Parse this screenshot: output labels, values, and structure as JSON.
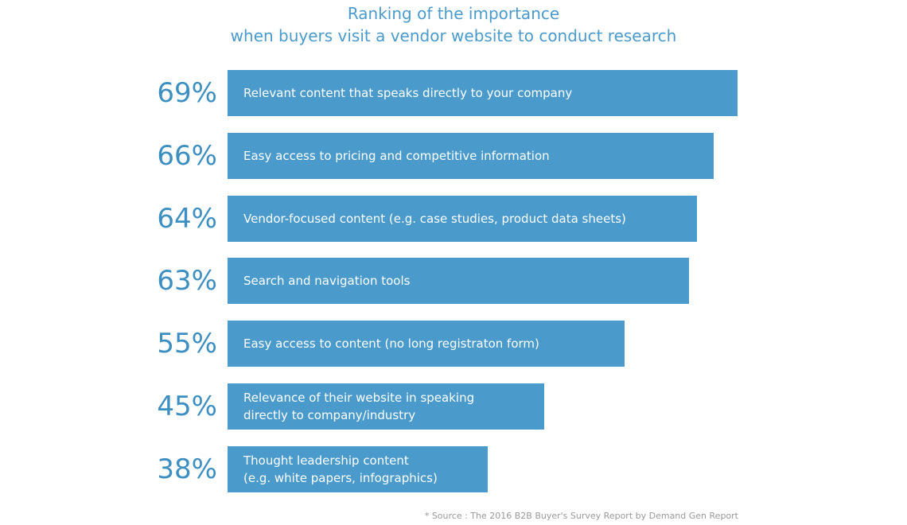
{
  "chart_data": {
    "type": "hbar",
    "title": "Ranking of the importance",
    "subtitle": "when buyers visit a vendor website to conduct research",
    "categories": [
      "Relevant content that speaks directly to your company",
      "Easy access to pricing and competitive information",
      "Vendor-focused content (e.g. case studies, product data sheets)",
      "Search and navigation tools",
      "Easy access to content (no long registraton form)",
      "Relevance of their website in speaking\ndirectly to company/industry",
      "Thought leadership content\n(e.g. white papers, infographics)"
    ],
    "values": [
      69,
      66,
      64,
      63,
      55,
      45,
      38
    ],
    "value_labels": [
      "69%",
      "66%",
      "64%",
      "63%",
      "55%",
      "45%",
      "38%"
    ],
    "color": "#4a9acb",
    "xlim": [
      5.7,
      69
    ],
    "note": "* Source : The 2016 B2B Buyer's Survey Report by Demand Gen Report"
  }
}
